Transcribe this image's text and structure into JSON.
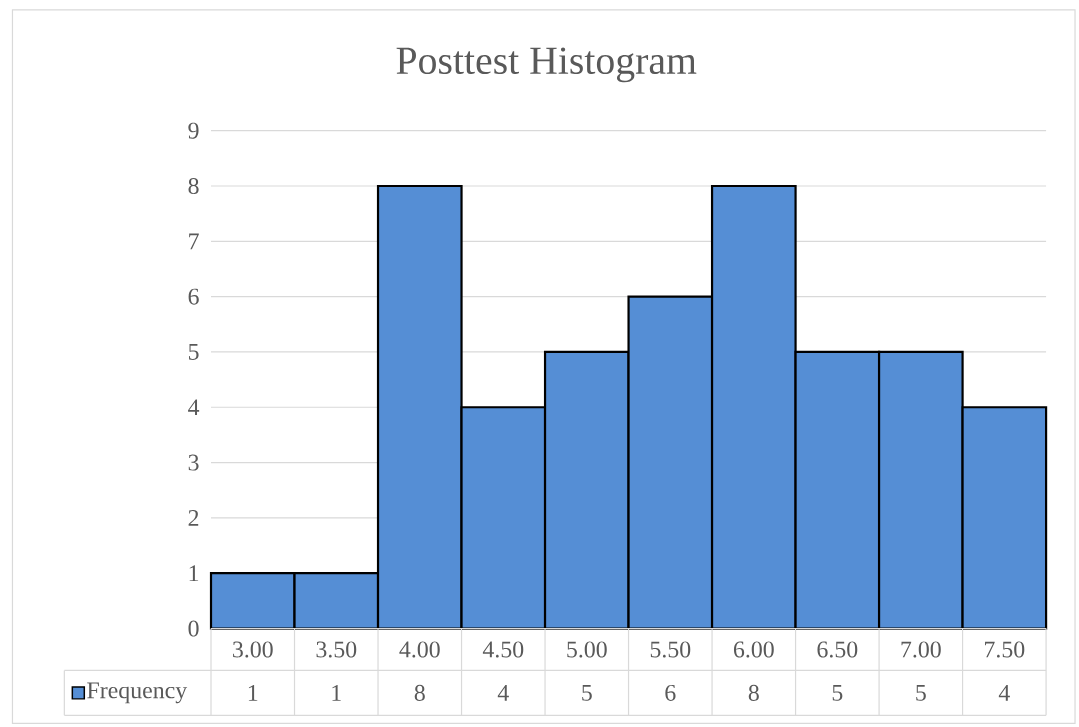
{
  "chart_data": {
    "type": "bar",
    "title": "Posttest Histogram",
    "categories": [
      "3.00",
      "3.50",
      "4.00",
      "4.50",
      "5.00",
      "5.50",
      "6.00",
      "6.50",
      "7.00",
      "7.50"
    ],
    "series": [
      {
        "name": "Frequency",
        "color": "#558ed5",
        "values": [
          1,
          1,
          8,
          4,
          5,
          6,
          8,
          5,
          5,
          4
        ]
      }
    ],
    "ylim": [
      0,
      9
    ],
    "yticks": [
      0,
      1,
      2,
      3,
      4,
      5,
      6,
      7,
      8,
      9
    ],
    "grid": "y",
    "legend": "bottom",
    "data_labels": true
  }
}
